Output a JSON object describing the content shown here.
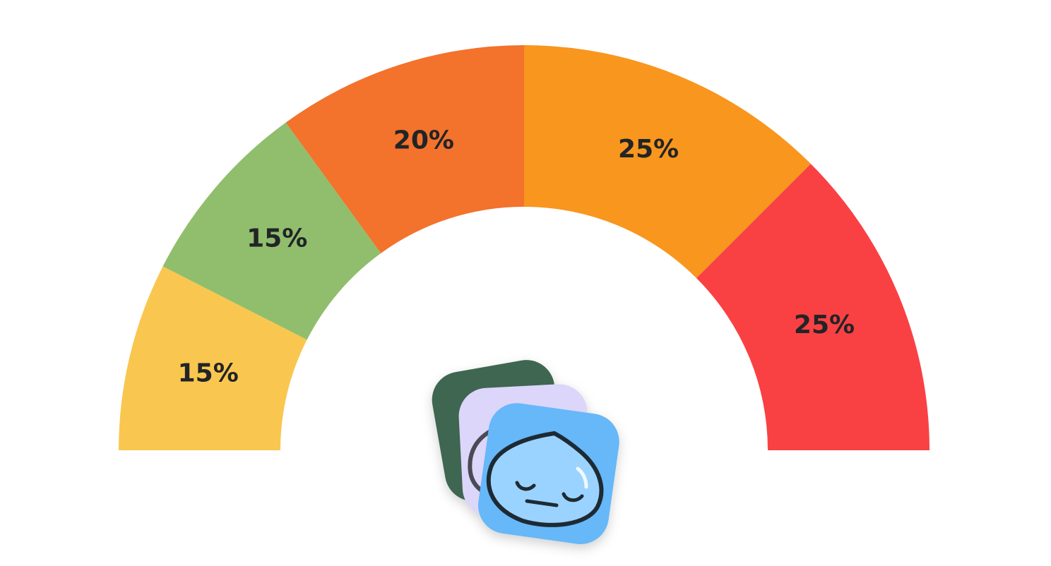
{
  "chart_data": {
    "type": "pie",
    "subtype": "semicircle-gauge",
    "title": "",
    "segments": [
      {
        "value": 15,
        "label": "15%",
        "color": "#F9C74F"
      },
      {
        "value": 15,
        "label": "15%",
        "color": "#90BE6D"
      },
      {
        "value": 20,
        "label": "20%",
        "color": "#F3722C"
      },
      {
        "value": 25,
        "label": "25%",
        "color": "#F8961E"
      },
      {
        "value": 25,
        "label": "25%",
        "color": "#F94144"
      }
    ],
    "legend": "none"
  },
  "mascot": {
    "icon": "water-drop-face-sticker-stack",
    "colors": {
      "back_card": "#3F6650",
      "middle_card": "#DCD6FB",
      "front_card": "#66B8F8",
      "drop_fill": "#9AD3FF",
      "outline": "#1E2A33"
    }
  }
}
